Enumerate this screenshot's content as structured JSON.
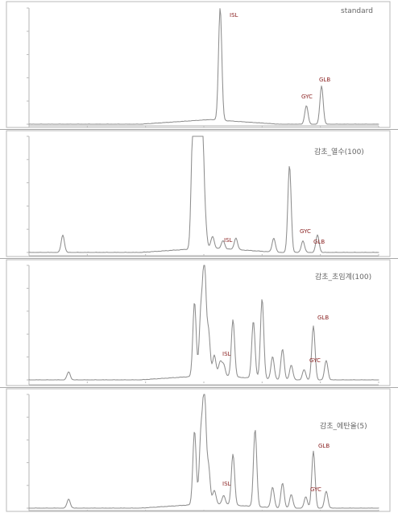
{
  "chart_data": [
    {
      "type": "line",
      "title": "standard",
      "xlim": [
        0,
        60
      ],
      "ylim": [
        0,
        1
      ],
      "peaks": [
        {
          "label": "ISL",
          "x": 32.8,
          "height": 0.97
        },
        {
          "label": "GYC",
          "x": 47.6,
          "height": 0.16
        },
        {
          "label": "GLB",
          "x": 50.2,
          "height": 0.33
        }
      ]
    },
    {
      "type": "line",
      "title": "감초_열수(100)",
      "xlim": [
        0,
        60
      ],
      "ylim": [
        0,
        1
      ],
      "peaks": [
        {
          "label": "",
          "x": 5.8,
          "height": 0.15
        },
        {
          "label": "",
          "x": 28.1,
          "height": 0.99
        },
        {
          "label": "",
          "x": 28.7,
          "height": 0.78
        },
        {
          "label": "",
          "x": 29.3,
          "height": 0.96
        },
        {
          "label": "",
          "x": 29.7,
          "height": 0.99
        },
        {
          "label": "",
          "x": 30.2,
          "height": 0.23
        },
        {
          "label": "",
          "x": 31.5,
          "height": 0.1
        },
        {
          "label": "ISL",
          "x": 33.3,
          "height": 0.07
        },
        {
          "label": "",
          "x": 35.5,
          "height": 0.1
        },
        {
          "label": "",
          "x": 42.0,
          "height": 0.12
        },
        {
          "label": "",
          "x": 44.7,
          "height": 0.75
        },
        {
          "label": "GYC",
          "x": 47.0,
          "height": 0.1
        },
        {
          "label": "GLB",
          "x": 49.5,
          "height": 0.15
        }
      ]
    },
    {
      "type": "line",
      "title": "감초_초임계(100)",
      "xlim": [
        0,
        60
      ],
      "ylim": [
        0,
        1
      ],
      "peaks": [
        {
          "label": "",
          "x": 6.8,
          "height": 0.07
        },
        {
          "label": "",
          "x": 28.4,
          "height": 0.65
        },
        {
          "label": "",
          "x": 29.5,
          "height": 0.55
        },
        {
          "label": "",
          "x": 30.1,
          "height": 0.97
        },
        {
          "label": "",
          "x": 30.8,
          "height": 0.38
        },
        {
          "label": "",
          "x": 31.8,
          "height": 0.18
        },
        {
          "label": "",
          "x": 32.8,
          "height": 0.12
        },
        {
          "label": "ISL",
          "x": 33.4,
          "height": 0.1
        },
        {
          "label": "",
          "x": 35.0,
          "height": 0.5
        },
        {
          "label": "",
          "x": 38.5,
          "height": 0.5
        },
        {
          "label": "",
          "x": 40.0,
          "height": 0.7
        },
        {
          "label": "",
          "x": 41.8,
          "height": 0.2
        },
        {
          "label": "",
          "x": 43.5,
          "height": 0.27
        },
        {
          "label": "",
          "x": 45.0,
          "height": 0.13
        },
        {
          "label": "GYC",
          "x": 47.2,
          "height": 0.09
        },
        {
          "label": "GLB",
          "x": 48.8,
          "height": 0.47
        },
        {
          "label": "",
          "x": 51.0,
          "height": 0.17
        }
      ]
    },
    {
      "type": "line",
      "title": "감초_에탄올(5)",
      "xlim": [
        0,
        60
      ],
      "ylim": [
        0,
        1
      ],
      "peaks": [
        {
          "label": "",
          "x": 6.8,
          "height": 0.08
        },
        {
          "label": "",
          "x": 28.4,
          "height": 0.65
        },
        {
          "label": "",
          "x": 29.5,
          "height": 0.6
        },
        {
          "label": "",
          "x": 30.1,
          "height": 0.97
        },
        {
          "label": "",
          "x": 30.8,
          "height": 0.32
        },
        {
          "label": "",
          "x": 31.8,
          "height": 0.12
        },
        {
          "label": "ISL",
          "x": 33.4,
          "height": 0.08
        },
        {
          "label": "",
          "x": 35.0,
          "height": 0.45
        },
        {
          "label": "",
          "x": 38.8,
          "height": 0.68
        },
        {
          "label": "",
          "x": 41.8,
          "height": 0.18
        },
        {
          "label": "",
          "x": 43.5,
          "height": 0.22
        },
        {
          "label": "",
          "x": 45.0,
          "height": 0.12
        },
        {
          "label": "GYC",
          "x": 47.5,
          "height": 0.1
        },
        {
          "label": "GLB",
          "x": 48.8,
          "height": 0.5
        },
        {
          "label": "",
          "x": 51.0,
          "height": 0.15
        }
      ]
    }
  ]
}
